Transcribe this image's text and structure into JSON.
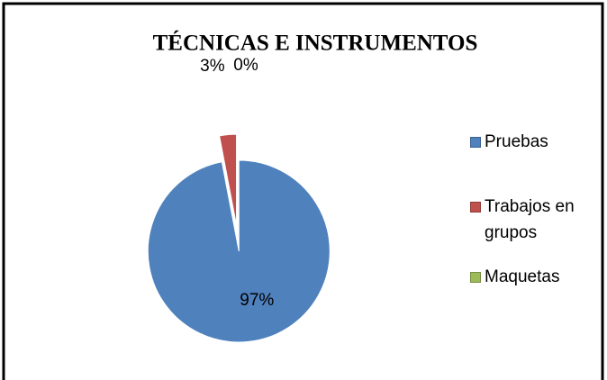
{
  "chart_data": {
    "type": "pie",
    "title": "TÉCNICAS E INSTRUMENTOS",
    "categories": [
      "Pruebas",
      "Trabajos en grupos",
      "Maquetas"
    ],
    "values": [
      97,
      3,
      0
    ],
    "value_labels": [
      "97%",
      "3%",
      "0%"
    ],
    "colors": [
      "#4f81bd",
      "#c0504d",
      "#9bbb59"
    ],
    "legend": "right"
  }
}
